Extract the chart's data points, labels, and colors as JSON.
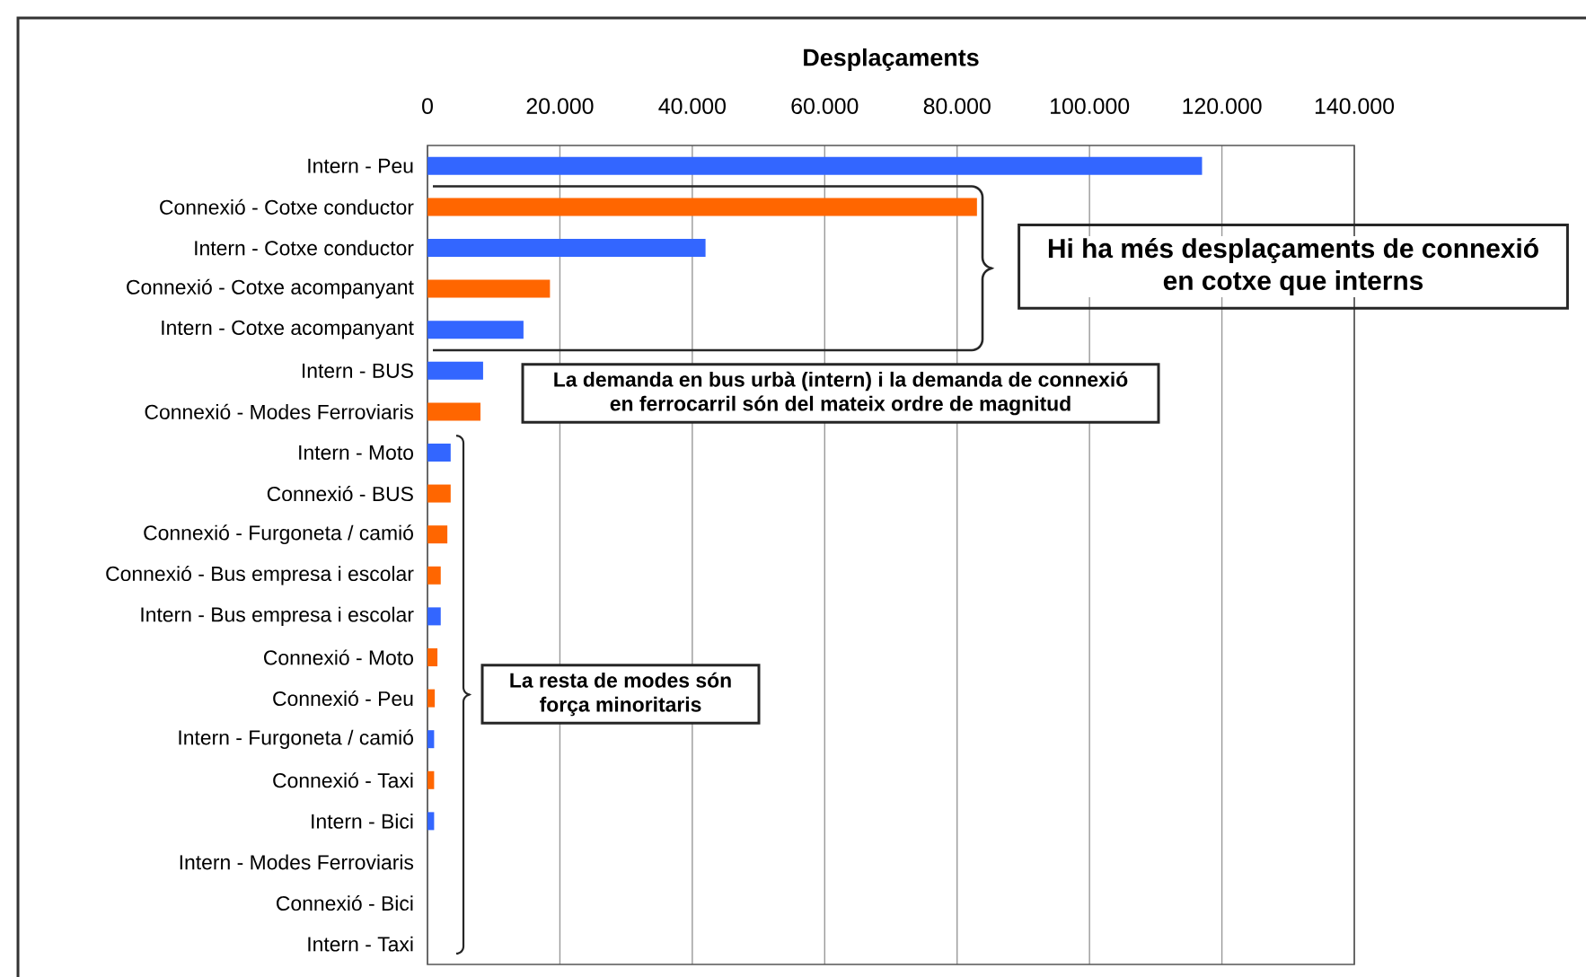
{
  "chart_data": {
    "type": "bar",
    "orientation": "horizontal",
    "xlabel": "Desplaçaments",
    "categories": [
      "Intern - Peu",
      "Connexió - Cotxe conductor",
      "Intern - Cotxe conductor",
      "Connexió - Cotxe acompanyant",
      "Intern - Cotxe acompanyant",
      "Intern - BUS",
      "Connexió - Modes Ferroviaris",
      "Intern - Moto",
      "Connexió - BUS",
      "Connexió - Furgoneta / camió",
      "Connexió - Bus empresa i escolar",
      "Intern - Bus empresa i escolar",
      "Connexió - Moto",
      "Connexió - Peu",
      "Intern - Furgoneta / camió",
      "Connexió - Taxi",
      "Intern - Bici",
      "Intern - Modes Ferroviaris",
      "Connexió - Bici",
      "Intern - Taxi"
    ],
    "values": [
      117000,
      83000,
      42000,
      18500,
      14500,
      8400,
      8000,
      3500,
      3500,
      3000,
      2000,
      2000,
      1500,
      1100,
      1000,
      1000,
      1000,
      0,
      0,
      0
    ],
    "colors": [
      "#3366ff",
      "#ff6600",
      "#3366ff",
      "#ff6600",
      "#3366ff",
      "#3366ff",
      "#ff6600",
      "#3366ff",
      "#ff6600",
      "#ff6600",
      "#ff6600",
      "#3366ff",
      "#ff6600",
      "#ff6600",
      "#3366ff",
      "#ff6600",
      "#3366ff",
      "#3366ff",
      "#ff6600",
      "#3366ff"
    ],
    "xlim": [
      0,
      140000
    ],
    "xticks": [
      0,
      {
        "value": 20000,
        "label": "20.000"
      },
      {
        "value": 40000,
        "label": "40.000"
      },
      {
        "value": 60000,
        "label": "60.000"
      },
      {
        "value": 80000,
        "label": "80.000"
      },
      {
        "value": 100000,
        "label": "100.000"
      },
      {
        "value": 120000,
        "label": "120.000"
      },
      {
        "value": 140000,
        "label": "140.000"
      }
    ],
    "grid": "x",
    "annotations": [
      "Hi ha més desplaçaments de connexió en cotxe que interns",
      "La demanda en bus urbà (intern) i la demanda de connexió en ferrocarril són del mateix ordre de magnitud",
      "La resta de modes són força minoritaris"
    ]
  }
}
